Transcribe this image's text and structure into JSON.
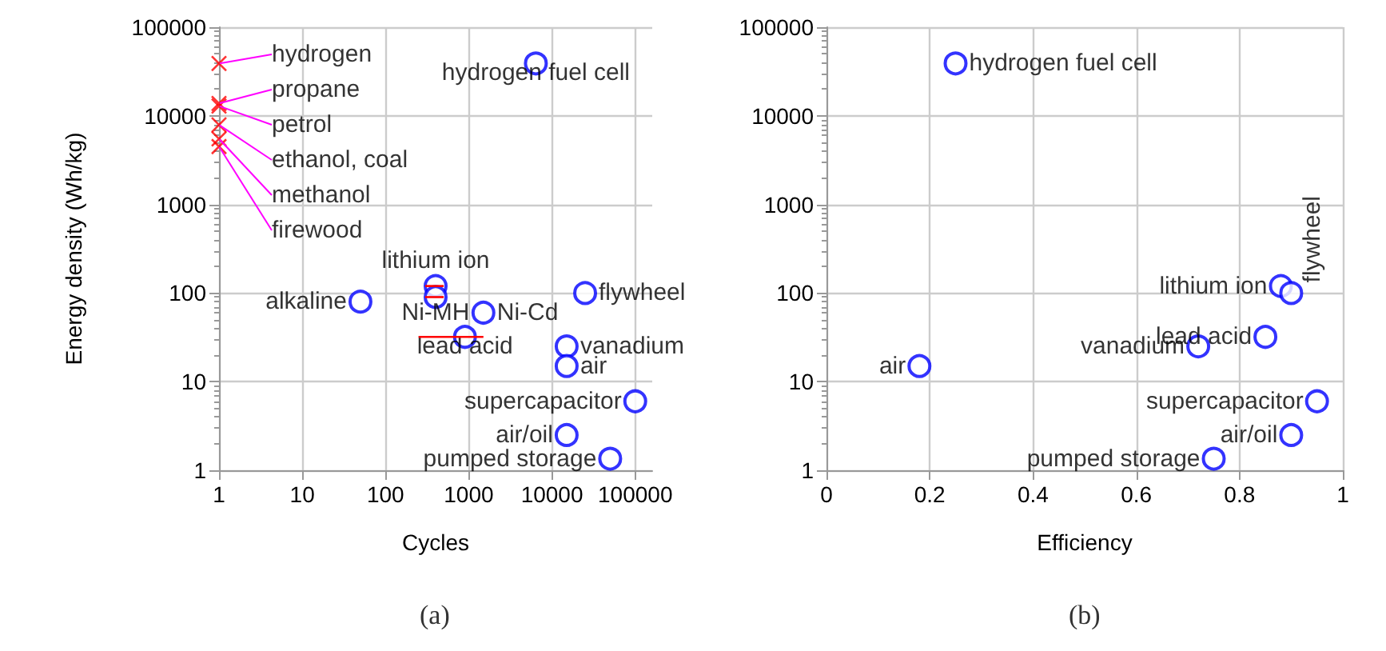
{
  "chart_data": [
    {
      "type": "scatter",
      "xlabel": "Cycles",
      "ylabel": "Energy density (Wh/kg)",
      "log": "xy",
      "xlim": [
        1,
        160000
      ],
      "ylim": [
        1,
        100000
      ],
      "xticks": [
        1,
        10,
        100,
        1000,
        10000,
        100000
      ],
      "yticks": [
        1,
        10,
        100,
        1000,
        10000,
        100000
      ],
      "grid": true,
      "series": [
        {
          "color": "#ff0000",
          "marker": "cross",
          "x": [
            1,
            1,
            1,
            1,
            1,
            1
          ],
          "values": [
            39000,
            13800,
            12900,
            7900,
            5500,
            4500
          ]
        },
        {
          "color": "#0000ff",
          "marker": "circle",
          "x": [
            6400,
            50,
            400,
            400,
            1500,
            900,
            25000,
            15000,
            15000,
            100000,
            15000,
            50000
          ],
          "values": [
            39000,
            80,
            120,
            90,
            60,
            32,
            100,
            25,
            15,
            6,
            2.5,
            1.35
          ],
          "xerrors": [
            null,
            null,
            [
              300,
              500
            ],
            [
              300,
              500
            ],
            null,
            [
              250,
              1500
            ],
            null,
            null,
            null,
            null,
            null,
            null
          ]
        }
      ],
      "annotations": [
        {
          "text": "hydrogen",
          "x": 1,
          "y": 39000
        },
        {
          "text": "propane",
          "x": 1,
          "y": 13800
        },
        {
          "text": "petrol",
          "x": 1,
          "y": 12900
        },
        {
          "text": "ethanol, coal",
          "x": 1,
          "y": 7900
        },
        {
          "text": "methanol",
          "x": 1,
          "y": 5500
        },
        {
          "text": "firewood",
          "x": 1,
          "y": 4500
        },
        {
          "text": "hydrogen fuel cell",
          "x": 6400,
          "y": 39000
        },
        {
          "text": "alkaline",
          "x": 50,
          "y": 80
        },
        {
          "text": "lithium ion",
          "x": 400,
          "y": 120
        },
        {
          "text": "Ni-MH",
          "x": 400,
          "y": 90
        },
        {
          "text": "Ni-Cd",
          "x": 1500,
          "y": 60
        },
        {
          "text": "lead acid",
          "x": 900,
          "y": 32
        },
        {
          "text": "flywheel",
          "x": 25000,
          "y": 100
        },
        {
          "text": "vanadium",
          "x": 15000,
          "y": 25
        },
        {
          "text": "air",
          "x": 15000,
          "y": 15
        },
        {
          "text": "supercapacitor",
          "x": 100000,
          "y": 6
        },
        {
          "text": "air/oil",
          "x": 15000,
          "y": 2.5
        },
        {
          "text": "pumped storage",
          "x": 50000,
          "y": 1.35
        },
        "(a)"
      ]
    },
    {
      "type": "scatter",
      "xlabel": "Efficiency",
      "log": "y",
      "xlim": [
        0,
        1
      ],
      "ylim": [
        1,
        100000
      ],
      "xticks": [
        0,
        0.2,
        0.4,
        0.6,
        0.8,
        1
      ],
      "yticks": [
        1,
        10,
        100,
        1000,
        10000,
        100000
      ],
      "grid": true,
      "series": [
        {
          "color": "#0000ff",
          "marker": "circle",
          "x": [
            0.25,
            0.88,
            0.9,
            0.85,
            0.72,
            0.18,
            0.95,
            0.9,
            0.75
          ],
          "values": [
            39000,
            120,
            100,
            32,
            25,
            15,
            6,
            2.5,
            1.35
          ]
        }
      ],
      "annotations": [
        {
          "text": "hydrogen fuel cell",
          "x": 0.25,
          "y": 39000
        },
        {
          "text": "lithium ion",
          "x": 0.88,
          "y": 120
        },
        {
          "text": "flywheel",
          "x": 0.9,
          "y": 100
        },
        {
          "text": "lead acid",
          "x": 0.85,
          "y": 32
        },
        {
          "text": "vanadium",
          "x": 0.72,
          "y": 25
        },
        {
          "text": "air",
          "x": 0.18,
          "y": 15
        },
        {
          "text": "supercapacitor",
          "x": 0.95,
          "y": 6
        },
        {
          "text": "air/oil",
          "x": 0.9,
          "y": 2.5
        },
        {
          "text": "pumped storage",
          "x": 0.75,
          "y": 1.35
        },
        "(b)"
      ]
    }
  ]
}
